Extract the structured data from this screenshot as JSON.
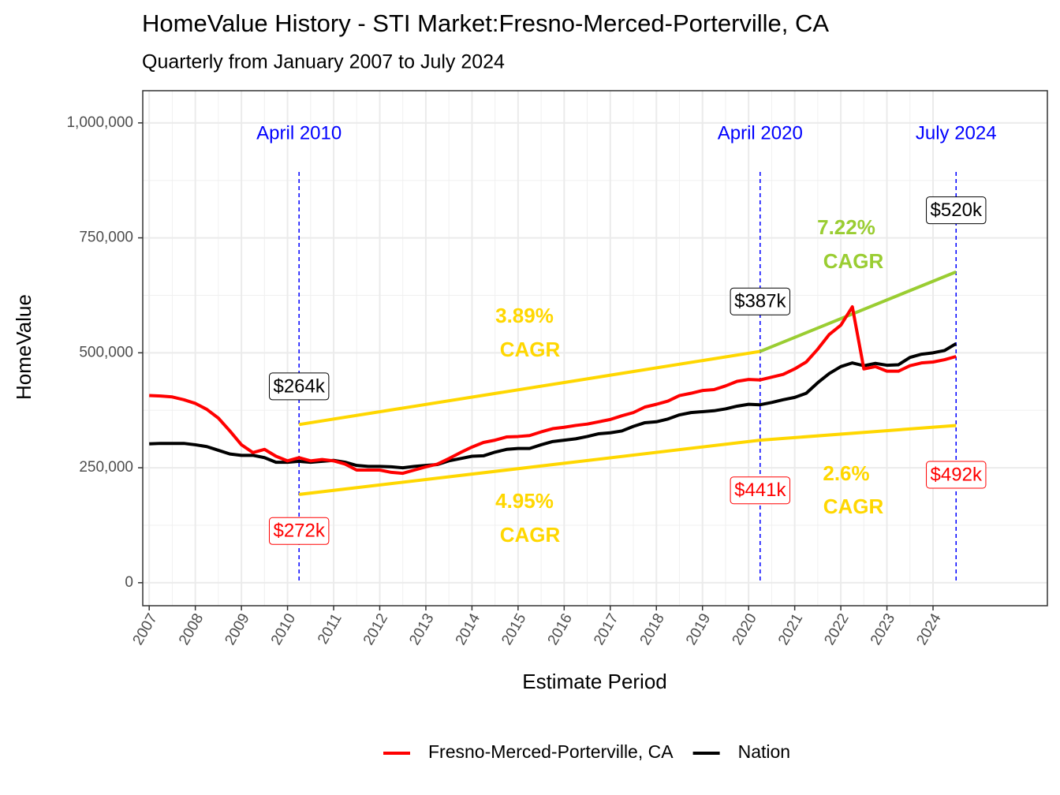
{
  "chart_data": {
    "type": "line",
    "title": "HomeValue History - STI Market:Fresno-Merced-Porterville, CA",
    "subtitle": "Quarterly from January 2007 to July 2024",
    "x_label": "Estimate Period",
    "y_label": "HomeValue",
    "xlim": [
      2006.86,
      2026.48
    ],
    "ylim": [
      -50000,
      1070000
    ],
    "xticks": [
      2007,
      2008,
      2009,
      2010,
      2011,
      2012,
      2013,
      2014,
      2015,
      2016,
      2017,
      2018,
      2019,
      2020,
      2021,
      2022,
      2023,
      2024
    ],
    "yticks": [
      0,
      {
        "value": 250000,
        "label": "250,000"
      },
      {
        "value": 500000,
        "label": "500,000"
      },
      {
        "value": 750000,
        "label": "750,000"
      },
      {
        "value": 1000000,
        "label": "1,000,000"
      }
    ],
    "grid": true,
    "legend": "bottom",
    "x": [
      2007,
      2007.25,
      2007.5,
      2007.75,
      2008,
      2008.25,
      2008.5,
      2008.75,
      2009,
      2009.25,
      2009.5,
      2009.75,
      2010,
      2010.25,
      2010.5,
      2010.75,
      2011,
      2011.25,
      2011.5,
      2011.75,
      2012,
      2012.25,
      2012.5,
      2012.75,
      2013,
      2013.25,
      2013.5,
      2013.75,
      2014,
      2014.25,
      2014.5,
      2014.75,
      2015,
      2015.25,
      2015.5,
      2015.75,
      2016,
      2016.25,
      2016.5,
      2016.75,
      2017,
      2017.25,
      2017.5,
      2017.75,
      2018,
      2018.25,
      2018.5,
      2018.75,
      2019,
      2019.25,
      2019.5,
      2019.75,
      2020,
      2020.25,
      2020.5,
      2020.75,
      2021,
      2021.25,
      2021.5,
      2021.75,
      2022,
      2022.25,
      2022.5,
      2022.75,
      2023,
      2023.25,
      2023.5,
      2023.75,
      2024,
      2024.25,
      2024.5
    ],
    "series": [
      {
        "name": "Fresno-Merced-Porterville, CA",
        "color": "#ff0000",
        "values": [
          407000,
          406000,
          404000,
          398000,
          390000,
          377000,
          358000,
          330000,
          300000,
          283000,
          290000,
          275000,
          265000,
          272000,
          265000,
          268000,
          265000,
          258000,
          245000,
          245000,
          245000,
          240000,
          238000,
          245000,
          252000,
          258000,
          270000,
          283000,
          295000,
          305000,
          310000,
          317000,
          318000,
          320000,
          328000,
          335000,
          338000,
          342000,
          345000,
          350000,
          355000,
          363000,
          370000,
          382000,
          388000,
          395000,
          407000,
          412000,
          418000,
          420000,
          428000,
          438000,
          442000,
          441000,
          447000,
          453000,
          465000,
          480000,
          508000,
          540000,
          560000,
          600000,
          465000,
          470000,
          460000,
          460000,
          472000,
          478000,
          480000,
          485000,
          492000
        ],
        "value_labels": [
          null,
          null,
          null,
          null,
          null,
          null,
          null,
          null,
          null,
          null,
          null,
          null,
          null,
          "$272k",
          null,
          null,
          null,
          null,
          null,
          null,
          null,
          null,
          null,
          null,
          null,
          null,
          null,
          null,
          null,
          null,
          null,
          null,
          null,
          null,
          null,
          null,
          null,
          null,
          null,
          null,
          null,
          null,
          null,
          null,
          null,
          null,
          null,
          null,
          null,
          null,
          null,
          null,
          null,
          "$441k",
          null,
          null,
          null,
          null,
          null,
          null,
          null,
          null,
          null,
          null,
          null,
          null,
          null,
          null,
          null,
          null,
          "$492k"
        ]
      },
      {
        "name": "Nation",
        "color": "#000000",
        "values": [
          302000,
          303000,
          303000,
          303000,
          300000,
          296000,
          288000,
          280000,
          277000,
          277000,
          272000,
          262000,
          262000,
          264000,
          262000,
          264000,
          266000,
          262000,
          255000,
          253000,
          253000,
          252000,
          250000,
          253000,
          255000,
          257000,
          265000,
          270000,
          275000,
          276000,
          284000,
          290000,
          292000,
          292000,
          300000,
          307000,
          310000,
          313000,
          318000,
          324000,
          326000,
          330000,
          340000,
          348000,
          350000,
          356000,
          365000,
          370000,
          372000,
          374000,
          378000,
          384000,
          388000,
          387000,
          392000,
          398000,
          403000,
          412000,
          435000,
          455000,
          470000,
          478000,
          472000,
          477000,
          473000,
          474000,
          490000,
          497000,
          500000,
          505000,
          520000
        ],
        "value_labels": [
          null,
          null,
          null,
          null,
          null,
          null,
          null,
          null,
          null,
          null,
          null,
          null,
          null,
          "$264k",
          null,
          null,
          null,
          null,
          null,
          null,
          null,
          null,
          null,
          null,
          null,
          null,
          null,
          null,
          null,
          null,
          null,
          null,
          null,
          null,
          null,
          null,
          null,
          null,
          null,
          null,
          null,
          null,
          null,
          null,
          null,
          null,
          null,
          null,
          null,
          null,
          null,
          null,
          null,
          "$387k",
          null,
          null,
          null,
          null,
          null,
          null,
          null,
          null,
          null,
          null,
          null,
          null,
          null,
          null,
          null,
          null,
          "$520k"
        ]
      }
    ],
    "trend_lines": [
      {
        "color": "#ffd700",
        "x": [
          2010.25,
          2020.25
        ],
        "values": [
          344000,
          503000
        ],
        "label": [
          "3.89%",
          "CAGR"
        ]
      },
      {
        "color": "#ffd700",
        "x": [
          2010.25,
          2020.25
        ],
        "values": [
          192000,
          310000
        ],
        "label": [
          "4.95%",
          "CAGR"
        ]
      },
      {
        "color": "#ffd700",
        "x": [
          2020.25,
          2024.5
        ],
        "values": [
          310000,
          342000
        ],
        "label": [
          "2.6%",
          "CAGR"
        ]
      },
      {
        "color": "#9acd32",
        "x": [
          2020.25,
          2024.5
        ],
        "values": [
          503000,
          676000
        ],
        "label": [
          "7.22%",
          "CAGR"
        ]
      }
    ],
    "vlines": [
      {
        "x": 2010.25,
        "label": "April 2010",
        "color": "#0000ff"
      },
      {
        "x": 2020.25,
        "label": "April 2020",
        "color": "#0000ff"
      },
      {
        "x": 2024.5,
        "label": "July 2024",
        "color": "#0000ff"
      }
    ]
  }
}
